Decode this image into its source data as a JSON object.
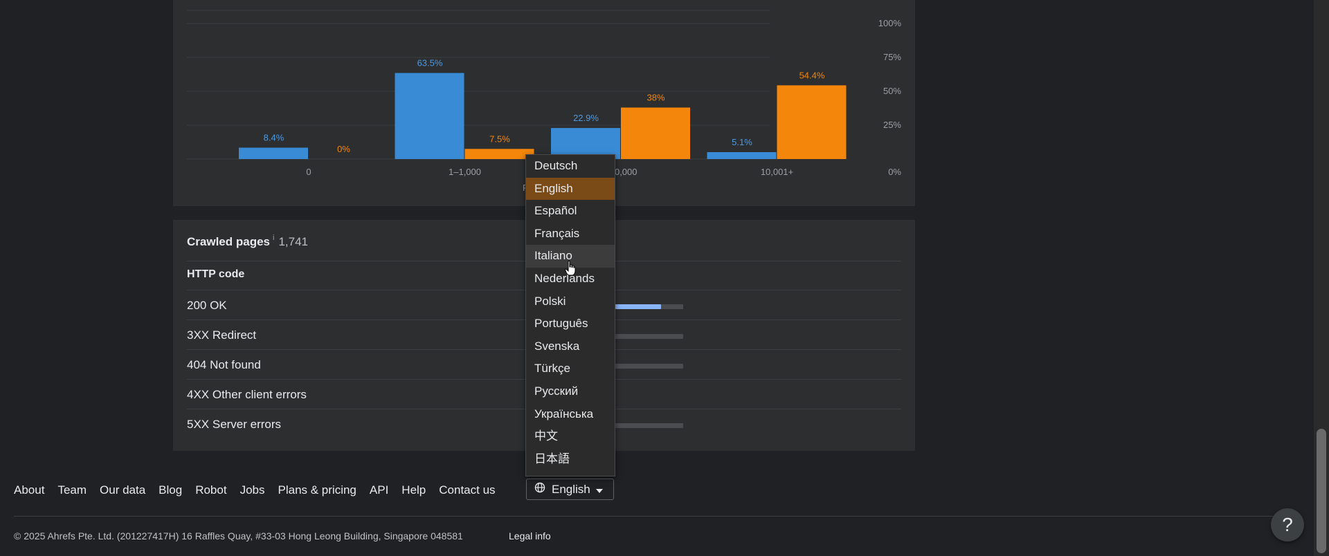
{
  "chart_data": {
    "type": "bar",
    "categories": [
      "0",
      "1–1,000",
      "1,001–10,000",
      "10,001+"
    ],
    "category_labels_visible": [
      "0",
      "1–1,000",
      "–10,000",
      "10,001+"
    ],
    "series": [
      {
        "values": [
          8.4,
          63.5,
          22.9,
          5.1
        ],
        "labels": [
          "8.4%",
          "63.5%",
          "22.9%",
          "5.1%"
        ]
      },
      {
        "values": [
          0,
          7.5,
          38,
          54.4
        ],
        "labels": [
          "0%",
          "7.5%",
          "38%",
          "54.4%"
        ]
      }
    ],
    "ylim": [
      0,
      100
    ],
    "y_tick_labels": [
      "0%",
      "25%",
      "50%",
      "75%",
      "100%"
    ],
    "xlabel_partial": "P",
    "grid": true,
    "colors": {
      "series1": "#3a8bd6",
      "series2": "#f3860b",
      "series1_label": "#4e9ae0",
      "series2_label": "#f3860b",
      "grid": "#3c4043",
      "tick": "#9aa0a6"
    }
  },
  "crawled": {
    "title": "Crawled pages",
    "info": "i",
    "count": "1,741",
    "header": "HTTP code",
    "rows": [
      {
        "label": "200 OK",
        "share": 0.73
      },
      {
        "label": "3XX Redirect",
        "share": 0.12
      },
      {
        "label": "404 Not found",
        "share": 0.07
      },
      {
        "label": "4XX Other client errors",
        "share": null
      },
      {
        "label": "5XX Server errors",
        "share": 0
      }
    ]
  },
  "footer": {
    "links": [
      "About",
      "Team",
      "Our data",
      "Blog",
      "Robot",
      "Jobs",
      "Plans & pricing",
      "API",
      "Help",
      "Contact us"
    ],
    "language_button": "English",
    "copyright": "© 2025 Ahrefs Pte. Ltd. (201227417H) 16 Raffles Quay, #33-03 Hong Leong Building, Singapore 048581",
    "legal": "Legal info"
  },
  "language_menu": {
    "items": [
      "Deutsch",
      "English",
      "Español",
      "Français",
      "Italiano",
      "Nederlands",
      "Polski",
      "Português",
      "Svenska",
      "Türkçe",
      "Русский",
      "Українська",
      "中文",
      "日本語"
    ],
    "selected": "English",
    "hovered": "Italiano"
  },
  "help": {
    "label": "?"
  },
  "icons": {
    "globe": "globe-icon",
    "caret": "caret-down-icon",
    "cursor": "hand-cursor-icon"
  }
}
